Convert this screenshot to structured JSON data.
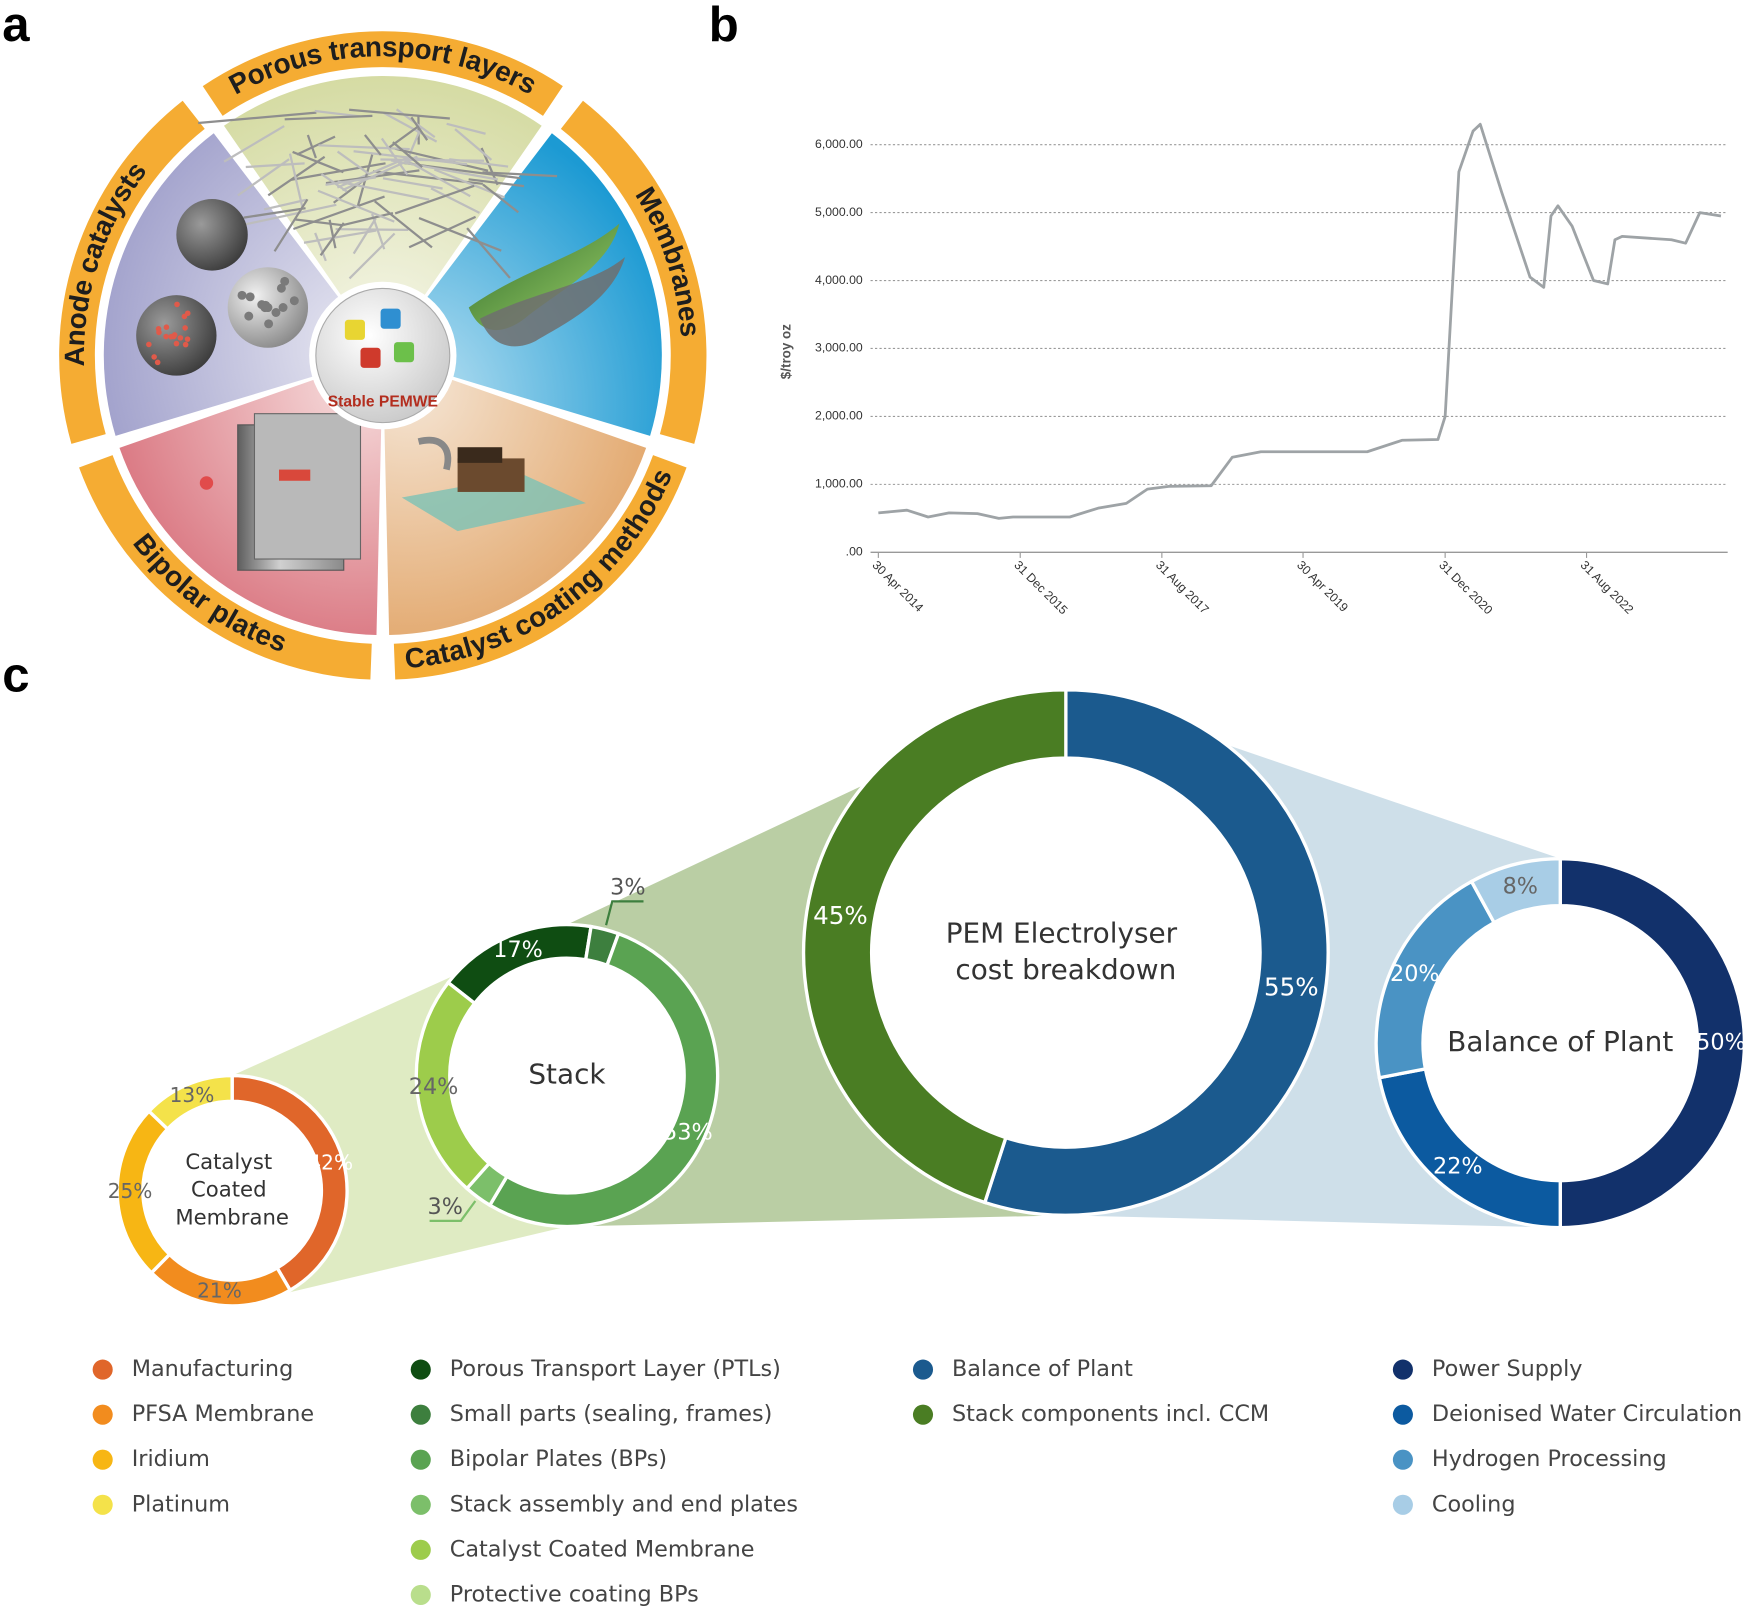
{
  "panel_labels": [
    "a",
    "b",
    "c"
  ],
  "diagram": {
    "center_label": "Stable PEMWE",
    "segments": [
      "Porous transport layers",
      "Membranes",
      "Catalyst coating methods",
      "Bipolar plates",
      "Anode catalysts"
    ]
  },
  "chart_data": [
    {
      "type": "line",
      "ylabel": "$/troy oz",
      "color": "#9ea3a6",
      "x": [
        "2014-04-30",
        "2014-08-31",
        "2014-11-30",
        "2015-02-28",
        "2015-06-30",
        "2015-09-30",
        "2015-11-30",
        "2016-07-31",
        "2016-11-30",
        "2017-03-31",
        "2017-06-30",
        "2017-09-30",
        "2018-03-31",
        "2018-06-30",
        "2018-10-31",
        "2020-01-31",
        "2020-06-30",
        "2020-11-30",
        "2020-12-31",
        "2021-02-28",
        "2021-04-30",
        "2021-05-31",
        "2021-08-31",
        "2021-12-31",
        "2022-02-28",
        "2022-03-31",
        "2022-04-30",
        "2022-06-30",
        "2022-09-30",
        "2022-11-30",
        "2022-12-31",
        "2023-01-31",
        "2023-08-31",
        "2023-10-31",
        "2023-12-31",
        "2024-03-31"
      ],
      "values": [
        580,
        620,
        520,
        580,
        570,
        500,
        520,
        520,
        650,
        720,
        930,
        970,
        980,
        1400,
        1480,
        1480,
        1650,
        1660,
        2000,
        5600,
        6200,
        6300,
        5300,
        4050,
        3900,
        4950,
        5100,
        4800,
        4000,
        3950,
        4600,
        4650,
        4600,
        4550,
        5000,
        4950
      ],
      "xlim": [
        "2014-04-30",
        "2024-03-31"
      ],
      "xticks": [
        {
          "value": "2014-04-30",
          "label": "30 Apr 2014"
        },
        {
          "value": "2015-12-31",
          "label": "31 Dec 2015"
        },
        {
          "value": "2017-08-31",
          "label": "31 Aug 2017"
        },
        {
          "value": "2019-04-30",
          "label": "30 Apr 2019"
        },
        {
          "value": "2020-12-31",
          "label": "31 Dec 2020"
        },
        {
          "value": "2022-08-31",
          "label": "31 Aug 2022"
        }
      ],
      "ylim": [
        0,
        6500
      ],
      "yticks": [
        {
          "value": 0,
          "label": ".00"
        },
        {
          "value": 1000,
          "label": "1,000.00"
        },
        {
          "value": 2000,
          "label": "2,000.00"
        },
        {
          "value": 3000,
          "label": "3,000.00"
        },
        {
          "value": 4000,
          "label": "4,000.00"
        },
        {
          "value": 5000,
          "label": "5,000.00"
        },
        {
          "value": 6000,
          "label": "6,000.00"
        }
      ],
      "grid": true
    },
    {
      "type": "donut",
      "center_label": "Catalyst Coated Membrane",
      "categories": [
        "Manufacturing",
        "PFSA Membrane",
        "Iridium",
        "Platinum"
      ],
      "values": [
        42,
        21,
        25,
        13
      ],
      "value_labels": [
        "42%",
        "21%",
        "25%",
        "13%"
      ],
      "colors": [
        "#e0662a",
        "#f28c1e",
        "#f7b614",
        "#f4e24a"
      ]
    },
    {
      "type": "donut",
      "center_label": "Stack",
      "categories": [
        "Porous Transport Layer (PTLs)",
        "Small parts (sealing, frames)",
        "Bipolar Plates (BPs)",
        "Stack assembly and end plates",
        "Catalyst Coated Membrane",
        "Protective coating BPs"
      ],
      "values": [
        17,
        3,
        53,
        3,
        24,
        null
      ],
      "value_labels": [
        "17%",
        "3%",
        "53%",
        "3%",
        "24%",
        null
      ],
      "colors": [
        "#0f4d12",
        "#3d7f3e",
        "#5aa352",
        "#7cbf6a",
        "#9dcc4b",
        "#b9de8c"
      ]
    },
    {
      "type": "donut",
      "center_label": "PEM Electrolyser cost breakdown",
      "categories": [
        "Balance of Plant",
        "Stack components incl. CCM"
      ],
      "values": [
        55,
        45
      ],
      "value_labels": [
        "55%",
        "45%"
      ],
      "colors": [
        "#1b5a8e",
        "#4a7d23"
      ]
    },
    {
      "type": "donut",
      "center_label": "Balance of Plant",
      "categories": [
        "Power Supply",
        "Deionised Water Circulation",
        "Hydrogen Processing",
        "Cooling"
      ],
      "values": [
        50,
        22,
        20,
        8
      ],
      "value_labels": [
        "50%",
        "22%",
        "20%",
        "8%"
      ],
      "colors": [
        "#12316b",
        "#0c5aa0",
        "#4a93c4",
        "#a8cde6"
      ]
    }
  ]
}
